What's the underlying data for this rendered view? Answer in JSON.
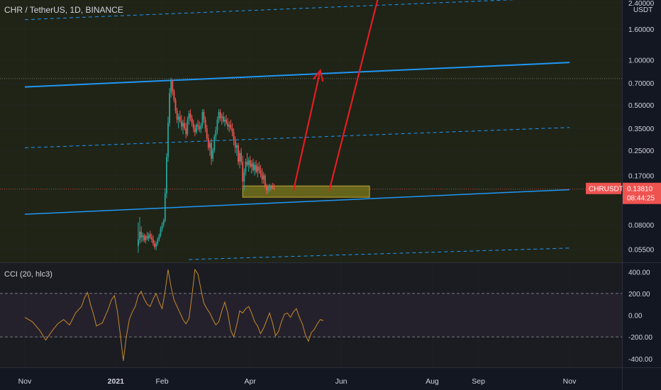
{
  "header": {
    "symbol_title": "CHR / TetherUS, 1D, BINANCE",
    "currency_label": "USDT"
  },
  "price_axis": {
    "ticks": [
      "2.40000",
      "1.60000",
      "1.00000",
      "0.70000",
      "0.50000",
      "0.35000",
      "0.25000",
      "0.17000",
      "0.08000",
      "0.05500"
    ],
    "tick_values": [
      2.4,
      1.6,
      1.0,
      0.7,
      0.5,
      0.35,
      0.25,
      0.17,
      0.08,
      0.055
    ],
    "scale": "log"
  },
  "price_label": {
    "symbol": "CHRUSDT",
    "price": "0.13810",
    "countdown": "08:44:25",
    "value": 0.1381,
    "color": "#ef5350"
  },
  "indicator": {
    "title": "CCI (20, hlc3)",
    "ticks": [
      "400.00",
      "200.00",
      "0.00",
      "-200.00",
      "-400.00"
    ],
    "tick_values": [
      400,
      200,
      0,
      -200,
      -400
    ],
    "upper_band": 200,
    "lower_band": -200,
    "line_color": "#c58a2a"
  },
  "time_axis": {
    "labels": [
      "Nov",
      "2021",
      "Feb",
      "Apr",
      "Jun",
      "Aug",
      "Sep",
      "Nov"
    ],
    "label_days": [
      0,
      61,
      92,
      151,
      212,
      273,
      304,
      365
    ]
  },
  "colors": {
    "background": "#131722",
    "up": "#26a69a",
    "down": "#ef5350",
    "trend_line": "#2196f3",
    "arrow": "#e51c23",
    "zone_fill": "#7d7a1e"
  },
  "chart_data": {
    "type": "candlestick",
    "x_axis": "days since first date label (Nov 2020)",
    "y_scale": "log",
    "price_ylim": [
      0.045,
      2.5
    ],
    "candles": [
      [
        76,
        0.058,
        0.083,
        0.052,
        0.064
      ],
      [
        77,
        0.064,
        0.09,
        0.06,
        0.072
      ],
      [
        78,
        0.072,
        0.078,
        0.061,
        0.066
      ],
      [
        79,
        0.066,
        0.071,
        0.062,
        0.068
      ],
      [
        80,
        0.068,
        0.07,
        0.061,
        0.063
      ],
      [
        81,
        0.063,
        0.069,
        0.06,
        0.067
      ],
      [
        82,
        0.067,
        0.072,
        0.063,
        0.065
      ],
      [
        83,
        0.065,
        0.071,
        0.062,
        0.069
      ],
      [
        84,
        0.069,
        0.073,
        0.064,
        0.066
      ],
      [
        85,
        0.066,
        0.07,
        0.061,
        0.064
      ],
      [
        86,
        0.064,
        0.068,
        0.058,
        0.06
      ],
      [
        87,
        0.06,
        0.063,
        0.055,
        0.057
      ],
      [
        88,
        0.057,
        0.062,
        0.054,
        0.06
      ],
      [
        89,
        0.06,
        0.066,
        0.058,
        0.064
      ],
      [
        90,
        0.064,
        0.07,
        0.062,
        0.068
      ],
      [
        91,
        0.068,
        0.078,
        0.066,
        0.075
      ],
      [
        92,
        0.075,
        0.083,
        0.072,
        0.08
      ],
      [
        93,
        0.08,
        0.088,
        0.077,
        0.085
      ],
      [
        94,
        0.085,
        0.14,
        0.083,
        0.13
      ],
      [
        95,
        0.13,
        0.24,
        0.12,
        0.225
      ],
      [
        96,
        0.225,
        0.42,
        0.21,
        0.38
      ],
      [
        97,
        0.38,
        0.65,
        0.36,
        0.6
      ],
      [
        98,
        0.6,
        0.76,
        0.56,
        0.72
      ],
      [
        99,
        0.72,
        0.74,
        0.58,
        0.62
      ],
      [
        100,
        0.62,
        0.64,
        0.52,
        0.54
      ],
      [
        101,
        0.54,
        0.56,
        0.44,
        0.46
      ],
      [
        102,
        0.46,
        0.48,
        0.38,
        0.4
      ],
      [
        103,
        0.4,
        0.44,
        0.35,
        0.42
      ],
      [
        104,
        0.42,
        0.46,
        0.38,
        0.39
      ],
      [
        105,
        0.39,
        0.43,
        0.34,
        0.36
      ],
      [
        106,
        0.36,
        0.4,
        0.32,
        0.38
      ],
      [
        107,
        0.38,
        0.42,
        0.34,
        0.35
      ],
      [
        108,
        0.35,
        0.38,
        0.3,
        0.32
      ],
      [
        109,
        0.32,
        0.42,
        0.31,
        0.4
      ],
      [
        110,
        0.4,
        0.46,
        0.37,
        0.44
      ],
      [
        111,
        0.44,
        0.47,
        0.39,
        0.41
      ],
      [
        112,
        0.41,
        0.43,
        0.36,
        0.38
      ],
      [
        113,
        0.38,
        0.4,
        0.33,
        0.35
      ],
      [
        114,
        0.35,
        0.37,
        0.31,
        0.33
      ],
      [
        115,
        0.33,
        0.38,
        0.32,
        0.37
      ],
      [
        116,
        0.37,
        0.4,
        0.34,
        0.36
      ],
      [
        117,
        0.36,
        0.39,
        0.33,
        0.345
      ],
      [
        118,
        0.345,
        0.38,
        0.325,
        0.365
      ],
      [
        119,
        0.365,
        0.47,
        0.35,
        0.45
      ],
      [
        120,
        0.45,
        0.47,
        0.38,
        0.4
      ],
      [
        121,
        0.4,
        0.42,
        0.33,
        0.35
      ],
      [
        122,
        0.35,
        0.37,
        0.29,
        0.3
      ],
      [
        123,
        0.3,
        0.32,
        0.25,
        0.26
      ],
      [
        124,
        0.26,
        0.29,
        0.23,
        0.28
      ],
      [
        125,
        0.28,
        0.3,
        0.2,
        0.22
      ],
      [
        126,
        0.22,
        0.26,
        0.21,
        0.25
      ],
      [
        127,
        0.25,
        0.32,
        0.24,
        0.31
      ],
      [
        128,
        0.31,
        0.36,
        0.29,
        0.34
      ],
      [
        129,
        0.34,
        0.42,
        0.32,
        0.4
      ],
      [
        130,
        0.4,
        0.47,
        0.38,
        0.45
      ],
      [
        131,
        0.45,
        0.47,
        0.39,
        0.41
      ],
      [
        132,
        0.41,
        0.44,
        0.37,
        0.42
      ],
      [
        133,
        0.42,
        0.45,
        0.38,
        0.39
      ],
      [
        134,
        0.39,
        0.42,
        0.36,
        0.4
      ],
      [
        135,
        0.4,
        0.43,
        0.37,
        0.38
      ],
      [
        136,
        0.38,
        0.41,
        0.34,
        0.36
      ],
      [
        137,
        0.36,
        0.39,
        0.33,
        0.37
      ],
      [
        138,
        0.37,
        0.4,
        0.34,
        0.35
      ],
      [
        139,
        0.35,
        0.38,
        0.31,
        0.33
      ],
      [
        140,
        0.33,
        0.35,
        0.27,
        0.29
      ],
      [
        141,
        0.29,
        0.31,
        0.24,
        0.26
      ],
      [
        142,
        0.26,
        0.28,
        0.23,
        0.27
      ],
      [
        143,
        0.27,
        0.28,
        0.2,
        0.21
      ],
      [
        144,
        0.21,
        0.25,
        0.19,
        0.24
      ],
      [
        145,
        0.24,
        0.26,
        0.2,
        0.21
      ],
      [
        146,
        0.21,
        0.23,
        0.14,
        0.155
      ],
      [
        147,
        0.155,
        0.19,
        0.135,
        0.18
      ],
      [
        148,
        0.18,
        0.22,
        0.17,
        0.21
      ],
      [
        149,
        0.21,
        0.24,
        0.195,
        0.2
      ],
      [
        150,
        0.2,
        0.225,
        0.18,
        0.215
      ],
      [
        151,
        0.215,
        0.23,
        0.19,
        0.195
      ],
      [
        152,
        0.195,
        0.215,
        0.175,
        0.205
      ],
      [
        153,
        0.205,
        0.22,
        0.18,
        0.185
      ],
      [
        154,
        0.185,
        0.21,
        0.17,
        0.2
      ],
      [
        155,
        0.2,
        0.215,
        0.175,
        0.18
      ],
      [
        156,
        0.18,
        0.205,
        0.165,
        0.195
      ],
      [
        157,
        0.195,
        0.21,
        0.175,
        0.185
      ],
      [
        158,
        0.185,
        0.2,
        0.165,
        0.175
      ],
      [
        159,
        0.175,
        0.19,
        0.15,
        0.16
      ],
      [
        160,
        0.16,
        0.18,
        0.15,
        0.17
      ],
      [
        161,
        0.17,
        0.175,
        0.14,
        0.145
      ],
      [
        162,
        0.145,
        0.15,
        0.128,
        0.135
      ],
      [
        163,
        0.135,
        0.148,
        0.128,
        0.142
      ],
      [
        164,
        0.142,
        0.15,
        0.133,
        0.14
      ],
      [
        165,
        0.14,
        0.148,
        0.135,
        0.145
      ],
      [
        166,
        0.145,
        0.152,
        0.138,
        0.141
      ],
      [
        167,
        0.141,
        0.15,
        0.136,
        0.1381
      ]
    ],
    "cci_values": [
      [
        0,
        -20
      ],
      [
        5,
        -60
      ],
      [
        10,
        -140
      ],
      [
        14,
        -230
      ],
      [
        18,
        -150
      ],
      [
        22,
        -80
      ],
      [
        26,
        -40
      ],
      [
        30,
        -90
      ],
      [
        34,
        20
      ],
      [
        38,
        80
      ],
      [
        40,
        160
      ],
      [
        42,
        210
      ],
      [
        44,
        100
      ],
      [
        46,
        10
      ],
      [
        48,
        -100
      ],
      [
        52,
        -70
      ],
      [
        56,
        60
      ],
      [
        58,
        140
      ],
      [
        60,
        180
      ],
      [
        62,
        40
      ],
      [
        64,
        -180
      ],
      [
        66,
        -420
      ],
      [
        68,
        -200
      ],
      [
        70,
        -40
      ],
      [
        72,
        30
      ],
      [
        74,
        80
      ],
      [
        76,
        180
      ],
      [
        78,
        220
      ],
      [
        80,
        150
      ],
      [
        82,
        100
      ],
      [
        84,
        80
      ],
      [
        86,
        150
      ],
      [
        88,
        200
      ],
      [
        90,
        120
      ],
      [
        92,
        60
      ],
      [
        94,
        220
      ],
      [
        96,
        420
      ],
      [
        98,
        260
      ],
      [
        100,
        140
      ],
      [
        102,
        80
      ],
      [
        104,
        20
      ],
      [
        106,
        -40
      ],
      [
        108,
        -80
      ],
      [
        110,
        -30
      ],
      [
        112,
        180
      ],
      [
        114,
        420
      ],
      [
        116,
        380
      ],
      [
        118,
        240
      ],
      [
        120,
        110
      ],
      [
        122,
        60
      ],
      [
        124,
        20
      ],
      [
        126,
        -40
      ],
      [
        128,
        -90
      ],
      [
        130,
        -60
      ],
      [
        132,
        40
      ],
      [
        134,
        120
      ],
      [
        136,
        20
      ],
      [
        138,
        -140
      ],
      [
        140,
        -200
      ],
      [
        142,
        -90
      ],
      [
        144,
        40
      ],
      [
        146,
        20
      ],
      [
        148,
        60
      ],
      [
        150,
        80
      ],
      [
        152,
        20
      ],
      [
        154,
        -60
      ],
      [
        156,
        -100
      ],
      [
        158,
        -170
      ],
      [
        160,
        -120
      ],
      [
        162,
        -50
      ],
      [
        164,
        20
      ],
      [
        166,
        -70
      ],
      [
        168,
        -190
      ],
      [
        170,
        -150
      ],
      [
        172,
        -60
      ],
      [
        174,
        10
      ],
      [
        176,
        20
      ],
      [
        178,
        -20
      ],
      [
        180,
        30
      ],
      [
        182,
        60
      ],
      [
        184,
        -20
      ],
      [
        186,
        -80
      ],
      [
        188,
        -180
      ],
      [
        190,
        -240
      ],
      [
        192,
        -160
      ],
      [
        194,
        -130
      ],
      [
        196,
        -80
      ],
      [
        198,
        -40
      ],
      [
        200,
        -50
      ]
    ],
    "annotations": {
      "support_zone": {
        "day_start": 146,
        "day_end": 231,
        "price_low": 0.122,
        "price_high": 0.145
      },
      "zone_midline_price": 0.1381,
      "upper_channel_line": {
        "days": [
          0,
          365
        ],
        "prices": [
          0.66,
          0.96
        ]
      },
      "lower_channel_line": {
        "days": [
          0,
          365
        ],
        "prices": [
          0.094,
          0.137
        ]
      },
      "upper_dashed_line": {
        "days": [
          0,
          365
        ],
        "prices": [
          1.85,
          2.6
        ]
      },
      "mid_dashed_line": {
        "days": [
          0,
          365
        ],
        "prices": [
          0.26,
          0.355
        ]
      },
      "bottom_dashed_line": {
        "days": [
          110,
          365
        ],
        "prices": [
          0.047,
          0.056
        ]
      },
      "dotted_level": 0.75,
      "arrows": [
        {
          "from": [
            180,
            0.135
          ],
          "to": [
            198,
            0.85
          ],
          "head": true
        },
        {
          "from": [
            204,
            0.135
          ],
          "to": [
            238,
            2.9
          ],
          "head": false
        }
      ]
    }
  }
}
